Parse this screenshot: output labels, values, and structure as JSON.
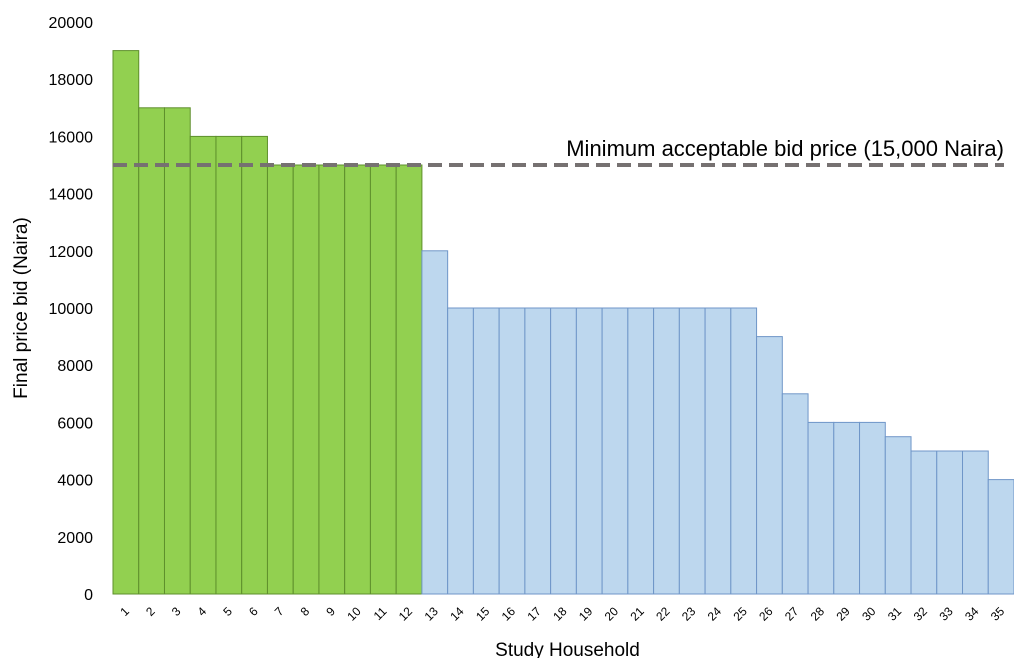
{
  "chart_data": {
    "type": "bar",
    "title": "",
    "xlabel": "Study Household",
    "ylabel": "Final price bid (Naira)",
    "ylim": [
      0,
      20000
    ],
    "yticks": [
      "0",
      "2000",
      "4000",
      "6000",
      "8000",
      "10000",
      "12000",
      "14000",
      "16000",
      "18000",
      "20000"
    ],
    "categories": [
      "1",
      "2",
      "3",
      "4",
      "5",
      "6",
      "7",
      "8",
      "9",
      "10",
      "11",
      "12",
      "13",
      "14",
      "15",
      "16",
      "17",
      "18",
      "19",
      "20",
      "21",
      "22",
      "23",
      "24",
      "25",
      "26",
      "27",
      "28",
      "29",
      "30",
      "31",
      "32",
      "33",
      "34",
      "35"
    ],
    "values": [
      19000,
      17000,
      17000,
      16000,
      16000,
      16000,
      15000,
      15000,
      15000,
      15000,
      15000,
      15000,
      12000,
      10000,
      10000,
      10000,
      10000,
      10000,
      10000,
      10000,
      10000,
      10000,
      10000,
      10000,
      10000,
      9000,
      7000,
      6000,
      6000,
      6000,
      5500,
      5000,
      5000,
      5000,
      4000
    ],
    "highlight_count": 12,
    "colors": {
      "above_threshold": "#92d050",
      "above_threshold_edge": "#5e8f2c",
      "below_threshold": "#bdd7ee",
      "below_threshold_edge": "#6f96c8",
      "reference_line": "#767171"
    },
    "reference_line": {
      "value": 15000,
      "label": "Minimum acceptable bid price (15,000 Naira)",
      "style": "dashed"
    },
    "grid": false,
    "legend": "none"
  }
}
